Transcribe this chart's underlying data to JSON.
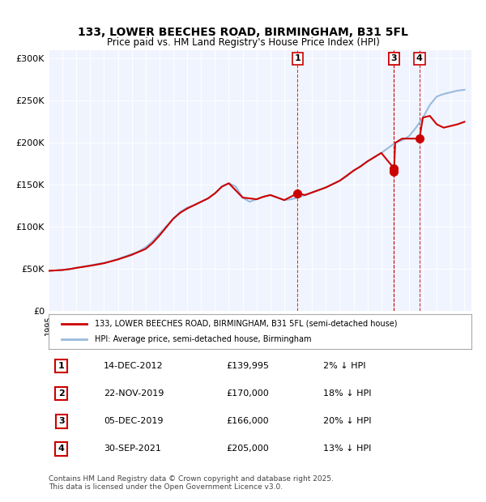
{
  "title_line1": "133, LOWER BEECHES ROAD, BIRMINGHAM, B31 5FL",
  "title_line2": "Price paid vs. HM Land Registry's House Price Index (HPI)",
  "legend_label_red": "133, LOWER BEECHES ROAD, BIRMINGHAM, B31 5FL (semi-detached house)",
  "legend_label_blue": "HPI: Average price, semi-detached house, Birmingham",
  "ylabel": "",
  "xlabel": "",
  "ylim": [
    0,
    310000
  ],
  "yticks": [
    0,
    50000,
    100000,
    150000,
    200000,
    250000,
    300000
  ],
  "ytick_labels": [
    "£0",
    "£50K",
    "£100K",
    "£150K",
    "£200K",
    "£250K",
    "£300K"
  ],
  "background_color": "#f0f4ff",
  "plot_background": "#f0f4ff",
  "red_color": "#cc0000",
  "blue_color": "#99bbdd",
  "footnote": "Contains HM Land Registry data © Crown copyright and database right 2025.\nThis data is licensed under the Open Government Licence v3.0.",
  "transactions": [
    {
      "num": 1,
      "date": "14-DEC-2012",
      "price": 139995,
      "pct": "2%",
      "year": 2012.96
    },
    {
      "num": 2,
      "date": "22-NOV-2019",
      "price": 170000,
      "pct": "18%",
      "year": 2019.9
    },
    {
      "num": 3,
      "date": "05-DEC-2019",
      "price": 166000,
      "pct": "20%",
      "year": 2019.92
    },
    {
      "num": 4,
      "date": "30-SEP-2021",
      "price": 205000,
      "pct": "13%",
      "year": 2021.75
    }
  ],
  "hpi_years": [
    1995,
    1995.5,
    1996,
    1996.5,
    1997,
    1997.5,
    1998,
    1998.5,
    1999,
    1999.5,
    2000,
    2000.5,
    2001,
    2001.5,
    2002,
    2002.5,
    2003,
    2003.5,
    2004,
    2004.5,
    2005,
    2005.5,
    2006,
    2006.5,
    2007,
    2007.5,
    2008,
    2008.5,
    2009,
    2009.5,
    2010,
    2010.5,
    2011,
    2011.5,
    2012,
    2012.5,
    2013,
    2013.5,
    2014,
    2014.5,
    2015,
    2015.5,
    2016,
    2016.5,
    2017,
    2017.5,
    2018,
    2018.5,
    2019,
    2019.5,
    2020,
    2020.5,
    2021,
    2021.5,
    2022,
    2022.5,
    2023,
    2023.5,
    2024,
    2024.5,
    2025
  ],
  "hpi_values": [
    48000,
    48500,
    49000,
    50000,
    51500,
    53000,
    54500,
    56000,
    57500,
    59500,
    62000,
    65000,
    68000,
    71000,
    76000,
    83000,
    92000,
    101000,
    110000,
    118000,
    123000,
    126000,
    130000,
    134000,
    140000,
    148000,
    152000,
    148000,
    135000,
    130000,
    133000,
    136000,
    138000,
    135000,
    132000,
    133000,
    135000,
    138000,
    141000,
    144000,
    147000,
    151000,
    155000,
    160000,
    167000,
    172000,
    178000,
    183000,
    188000,
    194000,
    200000,
    203000,
    208000,
    218000,
    230000,
    245000,
    255000,
    258000,
    260000,
    262000,
    263000
  ],
  "red_years": [
    1995,
    1995.5,
    1996,
    1996.5,
    1997,
    1998,
    1999,
    2000,
    2001,
    2002,
    2002.5,
    2003,
    2003.5,
    2004,
    2004.5,
    2005,
    2005.5,
    2006,
    2006.5,
    2007,
    2007.5,
    2008,
    2009,
    2010,
    2010.5,
    2011,
    2011.5,
    2012,
    2012.96,
    2013.5,
    2014,
    2014.5,
    2015,
    2016,
    2017,
    2017.5,
    2018,
    2018.5,
    2019,
    2019.9,
    2019.92,
    2020,
    2020.5,
    2021.75,
    2022,
    2022.5,
    2023,
    2023.5,
    2024,
    2024.5,
    2025
  ],
  "red_values": [
    48000,
    48500,
    49000,
    50000,
    51500,
    54000,
    57000,
    61500,
    67000,
    74000,
    81000,
    90000,
    100000,
    110000,
    117000,
    122000,
    126000,
    130000,
    134000,
    140000,
    148000,
    152000,
    135000,
    133000,
    136000,
    138000,
    135000,
    132000,
    139995,
    138000,
    141000,
    144000,
    147000,
    155000,
    167000,
    172000,
    178000,
    183000,
    188000,
    170000,
    166000,
    200000,
    205000,
    205000,
    230000,
    232000,
    222000,
    218000,
    220000,
    222000,
    225000
  ]
}
